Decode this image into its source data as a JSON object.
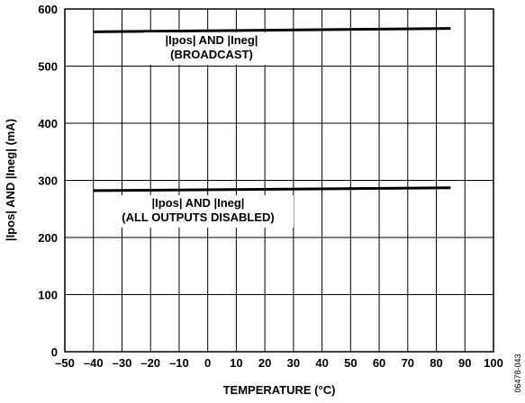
{
  "chart_data": {
    "type": "line",
    "xlabel": "TEMPERATURE (°C)",
    "ylabel": "|Ipos| AND |Ineg| (mA)",
    "xlim": [
      -50,
      100
    ],
    "ylim": [
      0,
      600
    ],
    "xticks": [
      "–50",
      "–40",
      "–30",
      "–20",
      "–10",
      "0",
      "10",
      "20",
      "30",
      "40",
      "50",
      "60",
      "70",
      "80",
      "90",
      "100"
    ],
    "yticks": [
      "0",
      "100",
      "200",
      "300",
      "400",
      "500",
      "600"
    ],
    "grid": true,
    "series": [
      {
        "x": [
          -40,
          85
        ],
        "y": [
          560,
          566
        ]
      },
      {
        "x": [
          -40,
          85
        ],
        "y": [
          282,
          287
        ]
      }
    ],
    "annotations": [
      {
        "lines": [
          "|Ipos| AND |Ineg|",
          "(BROADCAST)"
        ]
      },
      {
        "lines": [
          "|Ipos| AND |Ineg|",
          "(ALL OUTPUTS DISABLED)"
        ]
      }
    ],
    "figure_id": "06478-043"
  }
}
